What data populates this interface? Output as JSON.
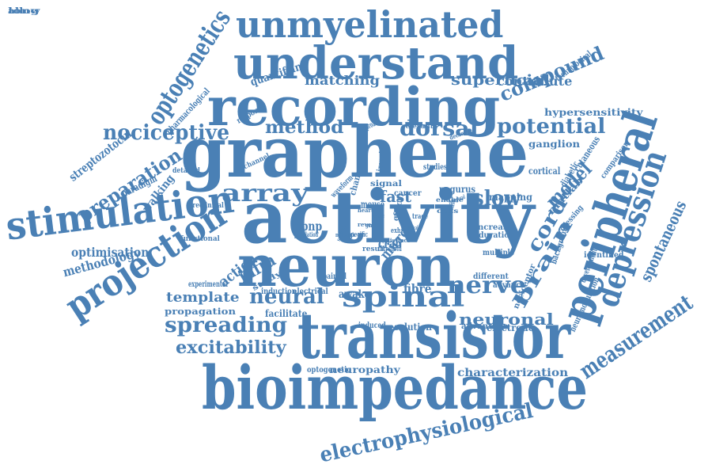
{
  "color": "#4a80b5",
  "background": "#ffffff",
  "words": [
    "unmyelinated",
    "understand",
    "recording",
    "graphene",
    "activity",
    "neuron",
    "transistor",
    "bioimpedance",
    "stimulation",
    "projection",
    "peripheral",
    "depression",
    "measurement",
    "spontaneous",
    "electrophysiological",
    "optogenetics",
    "nociceptive",
    "preparation",
    "array",
    "spinal",
    "nerve",
    "spreading",
    "excitability",
    "neural",
    "template",
    "brain",
    "cord",
    "model",
    "compound",
    "potential",
    "dorsal",
    "method",
    "matching",
    "superficial",
    "quantifying",
    "pharmacological",
    "technological",
    "contribute",
    "hypersensitivity",
    "ganglion",
    "cortical",
    "slow",
    "fast",
    "dpnp",
    "infra",
    "action",
    "methodology",
    "optimisation",
    "streptozotocin",
    "walking",
    "paradigm",
    "neuronal",
    "characterization",
    "neuropathy",
    "electrode",
    "resolution",
    "facilitate",
    "propagation",
    "experimental",
    "induction",
    "electrical",
    "awake",
    "fibre",
    "micro",
    "crab",
    "mouse",
    "signal",
    "cancer",
    "pagurus",
    "mapping",
    "studies",
    "cutaneous",
    "diabetic",
    "matlab",
    "comparison",
    "processing",
    "nociceptor",
    "identified",
    "development",
    "neuromodulation",
    "background",
    "advance",
    "different",
    "multiple",
    "increase",
    "duration",
    "advantage",
    "painful",
    "optogenetic",
    "induced",
    "response",
    "approach",
    "relevant",
    "decrease",
    "channel",
    "detailed",
    "preclinical",
    "functional",
    "population",
    "specific",
    "study",
    "waveform",
    "change",
    "invasive",
    "threshold",
    "result",
    "effect",
    "exhibit",
    "trace",
    "cells",
    "enable",
    "selective",
    "temporal",
    "ganglia",
    "genetic",
    "heart",
    "several",
    "reveal",
    "distinct",
    "network",
    "biological",
    "focal",
    "allow",
    "long"
  ]
}
